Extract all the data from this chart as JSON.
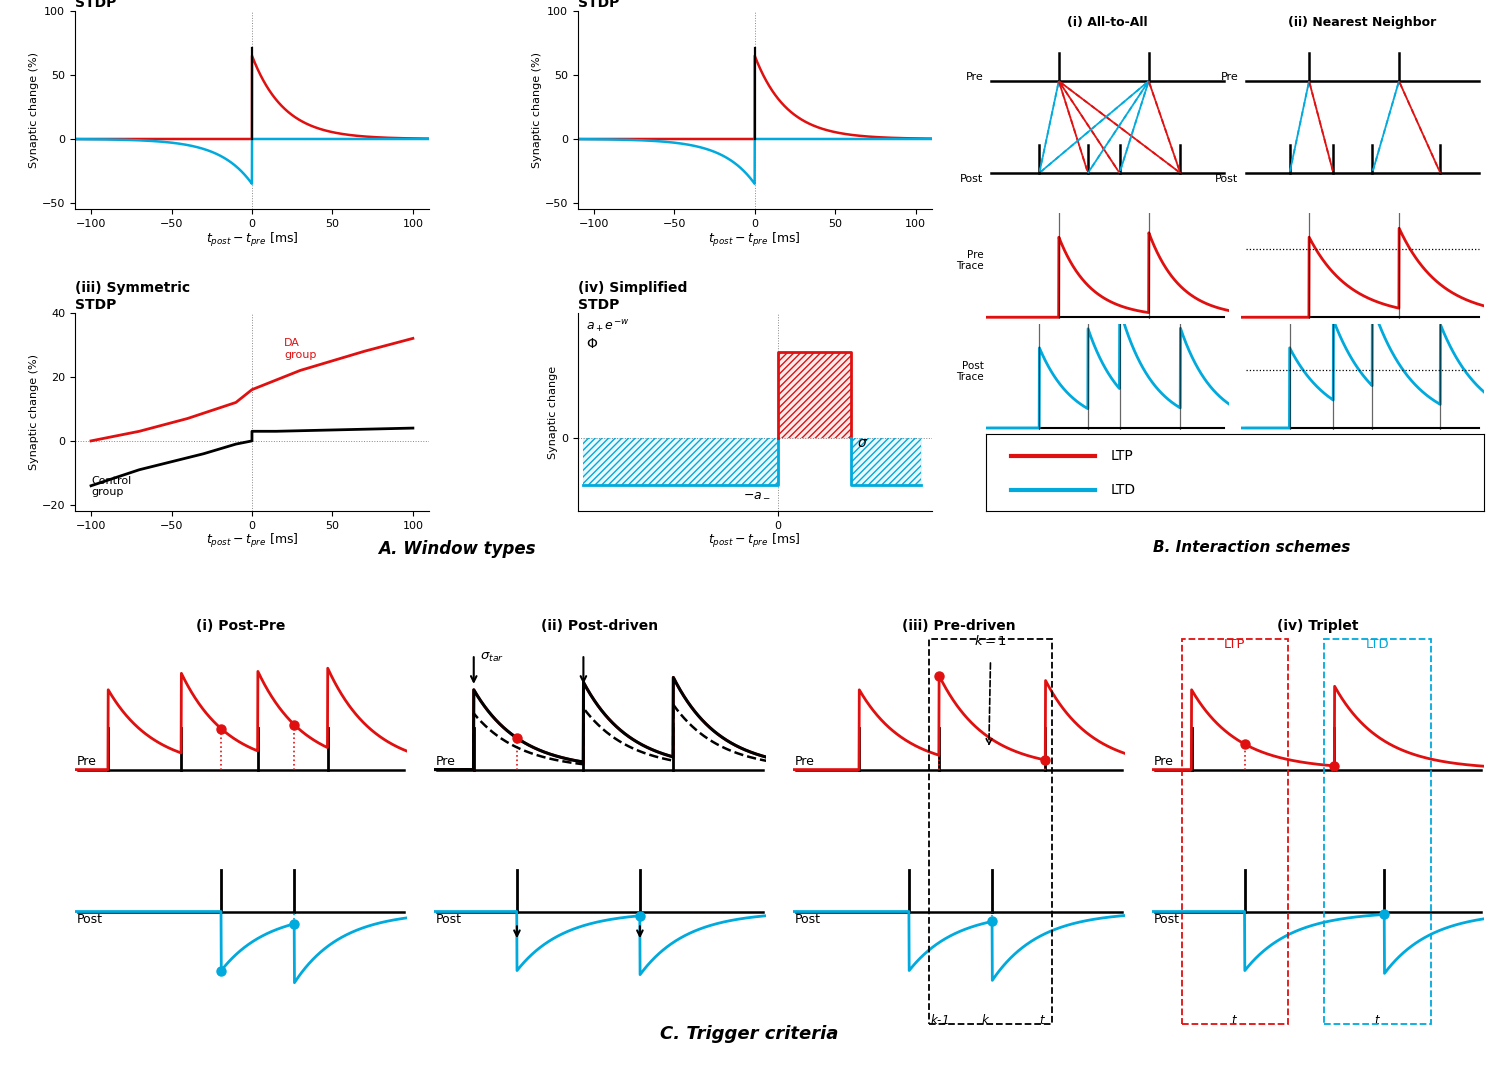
{
  "bg_color": "#ffffff",
  "red": "#e01010",
  "blue": "#00aadd",
  "black": "#000000",
  "gray": "#888888",
  "tau_p": 20,
  "tau_m": 20,
  "A_p": 65,
  "A_m": 35,
  "pre_times_all": [
    0.3,
    0.67
  ],
  "post_times_all": [
    0.22,
    0.42,
    0.55,
    0.8
  ],
  "pre_times_nn": [
    0.28,
    0.65
  ],
  "post_times_nn": [
    0.2,
    0.38,
    0.54,
    0.82
  ]
}
